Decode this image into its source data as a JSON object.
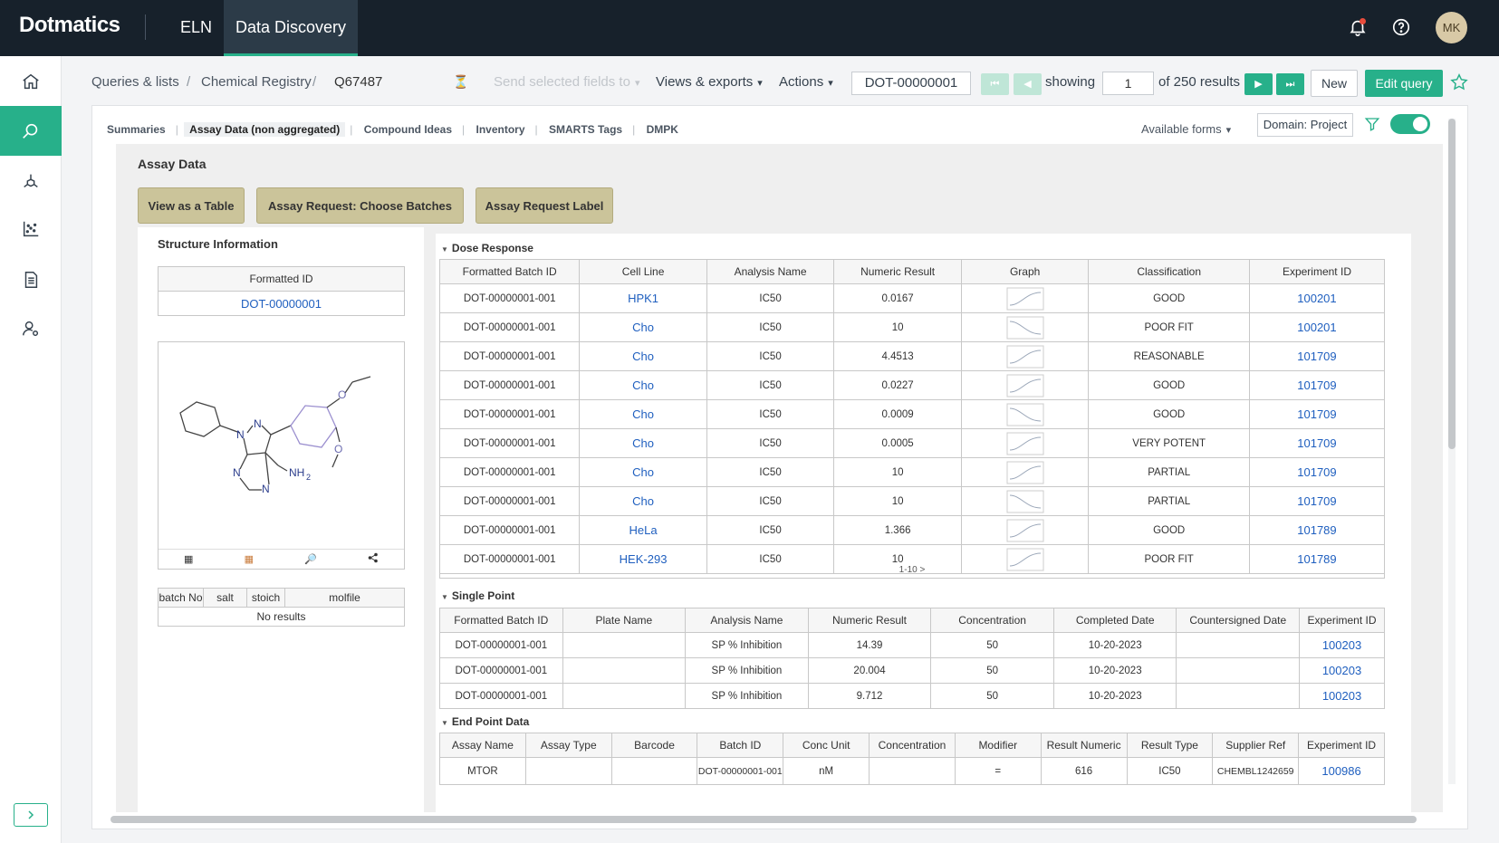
{
  "app": {
    "logo": "Dotmatics",
    "nav": [
      "ELN",
      "Data Discovery"
    ],
    "avatar_initials": "MK",
    "accent_color": "#27b08a",
    "topbar_color": "#17212b"
  },
  "sidebar": {
    "items": [
      "home-icon",
      "search-icon",
      "molecule-icon",
      "scatter-plot-icon",
      "document-icon",
      "user-settings-icon"
    ],
    "active_index": 1
  },
  "toolbar": {
    "breadcrumb": [
      "Queries & lists",
      "Chemical Registry",
      "Q67487"
    ],
    "breadcrumb_sep": "/",
    "send_fields": "Send selected fields to",
    "views_exports": "Views & exports",
    "actions": "Actions",
    "current_id": "DOT-00000001",
    "showing_label": "showing",
    "page_value": "1",
    "results_label": "of 250 results",
    "new_label": "New",
    "edit_query_label": "Edit query"
  },
  "tabs": {
    "items": [
      "Summaries",
      "Assay Data (non aggregated)",
      "Compound Ideas",
      "Inventory",
      "SMARTS Tags",
      "DMPK"
    ],
    "active_index": 1,
    "available_forms": "Available forms",
    "domain": "Domain: Project"
  },
  "assay": {
    "title": "Assay Data",
    "btn_view_table": "View as a Table",
    "btn_choose_batches": "Assay Request: Choose Batches",
    "btn_request_label": "Assay Request Label"
  },
  "structure": {
    "title": "Structure Information",
    "fid_header": "Formatted ID",
    "fid_value": "DOT-00000001",
    "atom_labels": [
      "N",
      "N",
      "N",
      "N",
      "NH",
      "2",
      "O",
      "O"
    ],
    "batch_headers": [
      "batch No",
      "salt",
      "stoich",
      "molfile"
    ],
    "batch_empty": "No results"
  },
  "dose_response": {
    "title": "Dose Response",
    "headers": [
      "Formatted Batch ID",
      "Cell Line",
      "Analysis Name",
      "Numeric Result",
      "Graph",
      "Classification",
      "Experiment ID"
    ],
    "rows": [
      [
        "DOT-00000001-001",
        "HPK1",
        "IC50",
        "0.0167",
        "GOOD",
        "100201"
      ],
      [
        "DOT-00000001-001",
        "Cho",
        "IC50",
        "10",
        "POOR FIT",
        "100201"
      ],
      [
        "DOT-00000001-001",
        "Cho",
        "IC50",
        "4.4513",
        "REASONABLE",
        "101709"
      ],
      [
        "DOT-00000001-001",
        "Cho",
        "IC50",
        "0.0227",
        "GOOD",
        "101709"
      ],
      [
        "DOT-00000001-001",
        "Cho",
        "IC50",
        "0.0009",
        "GOOD",
        "101709"
      ],
      [
        "DOT-00000001-001",
        "Cho",
        "IC50",
        "0.0005",
        "VERY POTENT",
        "101709"
      ],
      [
        "DOT-00000001-001",
        "Cho",
        "IC50",
        "10",
        "PARTIAL",
        "101709"
      ],
      [
        "DOT-00000001-001",
        "Cho",
        "IC50",
        "10",
        "PARTIAL",
        "101709"
      ],
      [
        "DOT-00000001-001",
        "HeLa",
        "IC50",
        "1.366",
        "GOOD",
        "101789"
      ],
      [
        "DOT-00000001-001",
        "HEK-293",
        "IC50",
        "10",
        "POOR FIT",
        "101789"
      ]
    ],
    "pager": "1-10 >"
  },
  "single_point": {
    "title": "Single Point",
    "headers": [
      "Formatted Batch ID",
      "Plate Name",
      "Analysis Name",
      "Numeric Result",
      "Concentration",
      "Completed Date",
      "Countersigned Date",
      "Experiment ID"
    ],
    "rows": [
      [
        "DOT-00000001-001",
        "",
        "SP % Inhibition",
        "14.39",
        "50",
        "10-20-2023",
        "",
        "100203"
      ],
      [
        "DOT-00000001-001",
        "",
        "SP % Inhibition",
        "20.004",
        "50",
        "10-20-2023",
        "",
        "100203"
      ],
      [
        "DOT-00000001-001",
        "",
        "SP % Inhibition",
        "9.712",
        "50",
        "10-20-2023",
        "",
        "100203"
      ]
    ]
  },
  "end_point": {
    "title": "End Point Data",
    "headers": [
      "Assay Name",
      "Assay Type",
      "Barcode",
      "Batch ID",
      "Conc Unit",
      "Concentration",
      "Modifier",
      "Result Numeric",
      "Result Type",
      "Supplier Ref",
      "Experiment ID"
    ],
    "rows": [
      [
        "MTOR",
        "",
        "",
        "DOT-00000001-001",
        "nM",
        "",
        "=",
        "616",
        "IC50",
        "CHEMBL1242659",
        "100986"
      ]
    ]
  }
}
